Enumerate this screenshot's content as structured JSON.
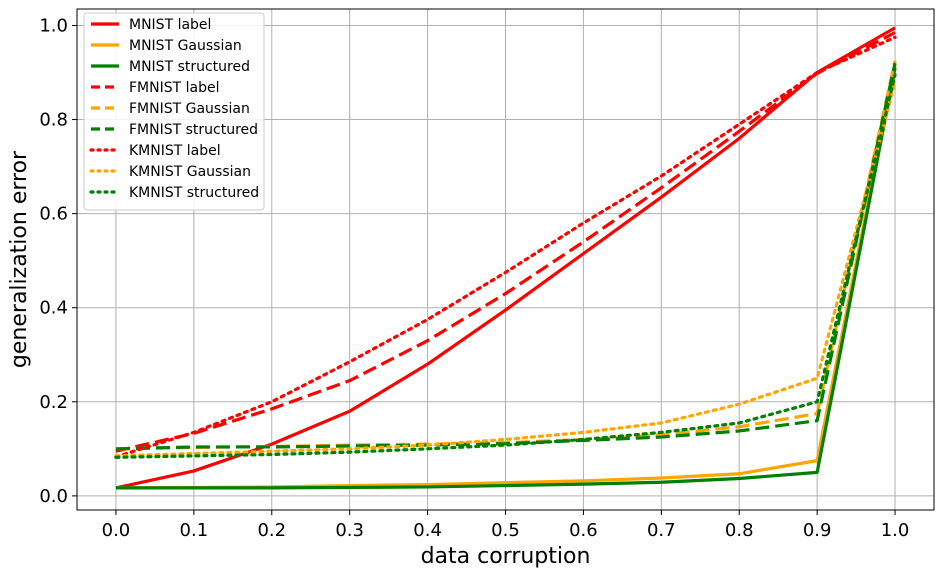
{
  "chart_data": {
    "type": "line",
    "title": "",
    "xlabel": "data corruption",
    "ylabel": "generalization error",
    "xlim": [
      -0.05,
      1.05
    ],
    "ylim": [
      -0.03,
      1.035
    ],
    "grid": true,
    "legend_position": "top-left",
    "x": [
      0.0,
      0.1,
      0.2,
      0.3,
      0.4,
      0.5,
      0.6,
      0.7,
      0.8,
      0.9,
      1.0
    ],
    "x_ticks": [
      "0.0",
      "0.1",
      "0.2",
      "0.3",
      "0.4",
      "0.5",
      "0.6",
      "0.7",
      "0.8",
      "0.9",
      "1.0"
    ],
    "y_ticks": [
      0.0,
      0.2,
      0.4,
      0.6,
      0.8,
      1.0
    ],
    "y_tick_labels": [
      "0.0",
      "0.2",
      "0.4",
      "0.6",
      "0.8",
      "1.0"
    ],
    "series": [
      {
        "name": "MNIST label",
        "color": "#ff0000",
        "style": "solid",
        "values": [
          0.017,
          0.053,
          0.11,
          0.18,
          0.28,
          0.395,
          0.515,
          0.635,
          0.76,
          0.9,
          0.995
        ]
      },
      {
        "name": "MNIST Gaussian",
        "color": "#ffa500",
        "style": "solid",
        "values": [
          0.017,
          0.018,
          0.019,
          0.022,
          0.024,
          0.028,
          0.032,
          0.038,
          0.047,
          0.075,
          0.915
        ]
      },
      {
        "name": "MNIST structured",
        "color": "#008000",
        "style": "solid",
        "values": [
          0.017,
          0.017,
          0.017,
          0.018,
          0.019,
          0.022,
          0.025,
          0.029,
          0.037,
          0.05,
          0.91
        ]
      },
      {
        "name": "FMNIST label",
        "color": "#ff0000",
        "style": "dashed",
        "values": [
          0.095,
          0.133,
          0.185,
          0.245,
          0.33,
          0.43,
          0.54,
          0.655,
          0.775,
          0.898,
          0.985
        ]
      },
      {
        "name": "FMNIST Gaussian",
        "color": "#ffa500",
        "style": "dashed",
        "values": [
          0.1,
          0.103,
          0.105,
          0.108,
          0.11,
          0.113,
          0.12,
          0.13,
          0.147,
          0.175,
          0.925
        ]
      },
      {
        "name": "FMNIST structured",
        "color": "#008000",
        "style": "dashed",
        "values": [
          0.1,
          0.104,
          0.104,
          0.106,
          0.108,
          0.111,
          0.118,
          0.125,
          0.138,
          0.16,
          0.92
        ]
      },
      {
        "name": "KMNIST label",
        "color": "#ff0000",
        "style": "dotted",
        "values": [
          0.083,
          0.135,
          0.2,
          0.285,
          0.375,
          0.475,
          0.58,
          0.68,
          0.79,
          0.9,
          0.975
        ]
      },
      {
        "name": "KMNIST Gaussian",
        "color": "#ffa500",
        "style": "dotted",
        "values": [
          0.085,
          0.09,
          0.095,
          0.1,
          0.108,
          0.12,
          0.135,
          0.155,
          0.195,
          0.25,
          0.88
        ]
      },
      {
        "name": "KMNIST structured",
        "color": "#008000",
        "style": "dotted",
        "values": [
          0.082,
          0.085,
          0.088,
          0.093,
          0.1,
          0.108,
          0.12,
          0.135,
          0.155,
          0.2,
          0.895
        ]
      }
    ]
  }
}
